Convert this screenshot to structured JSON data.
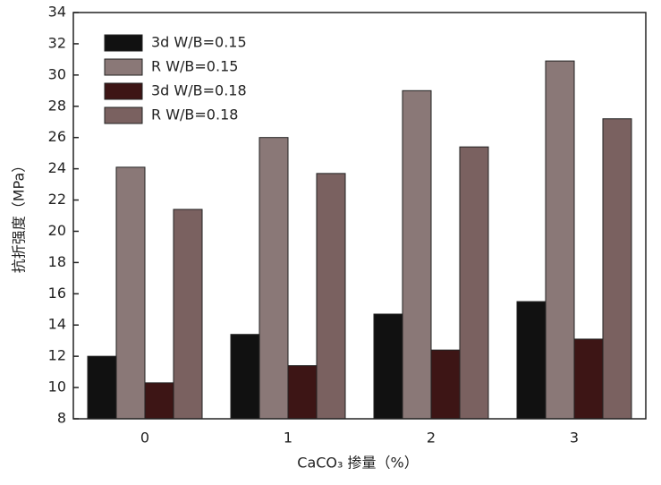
{
  "chart_data": {
    "type": "bar",
    "categories": [
      "0",
      "1",
      "2",
      "3"
    ],
    "series": [
      {
        "name": "3d W/B=0.15",
        "color": "#111111",
        "values": [
          12.0,
          13.4,
          14.7,
          15.5
        ]
      },
      {
        "name": "R W/B=0.15",
        "color": "#8a7877",
        "values": [
          24.1,
          26.0,
          29.0,
          30.9
        ]
      },
      {
        "name": "3d W/B=0.18",
        "color": "#3d1515",
        "values": [
          10.3,
          11.4,
          12.4,
          13.1
        ]
      },
      {
        "name": "R W/B=0.18",
        "color": "#7a6160",
        "values": [
          21.4,
          23.7,
          25.4,
          27.2
        ]
      }
    ],
    "xlabel": "CaCO₃ 掺量（%）",
    "ylabel": "抗折强度（MPa）",
    "ylim": [
      8,
      34
    ],
    "yticks": [
      8,
      10,
      12,
      14,
      16,
      18,
      20,
      22,
      24,
      26,
      28,
      30,
      32,
      34
    ],
    "legend": "upper left"
  }
}
